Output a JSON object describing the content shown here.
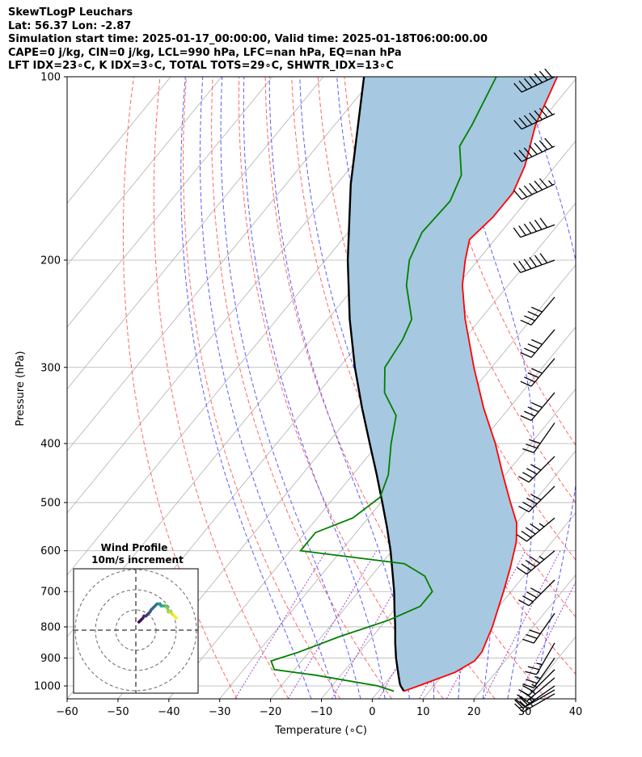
{
  "header": {
    "title": "SkewTLogP Leuchars",
    "location": "Lat: 56.37   Lon: -2.87",
    "times": "Simulation start time: 2025-01-17_00:00:00, Valid time: 2025-01-18T06:00:00.00",
    "params1": "CAPE=0 j/kg, CIN=0 j/kg, LCL=990 hPa, LFC=nan hPa, EQ=nan hPa",
    "params2": "LFT IDX=23∘C, K IDX=3∘C, TOTAL TOTS=29∘C, SHWTR_IDX=13∘C"
  },
  "chart_data": {
    "type": "line",
    "subtype": "skew-t log-p",
    "xlabel": "Temperature (∘C)",
    "ylabel": "Pressure (hPa)",
    "xlim": [
      -60,
      40
    ],
    "ylim_hpa": [
      1050,
      100
    ],
    "x_ticks": [
      -60,
      -50,
      -40,
      -30,
      -20,
      -10,
      0,
      10,
      20,
      30,
      40
    ],
    "y_ticks": [
      100,
      200,
      300,
      400,
      500,
      600,
      700,
      800,
      900,
      1000
    ],
    "y_scale": "log",
    "grid": true,
    "series": [
      {
        "role": "temperature",
        "color": "#ff0000",
        "points": [
          [
            1020,
            5.0
          ],
          [
            1000,
            7.0
          ],
          [
            950,
            12.0
          ],
          [
            910,
            14.0
          ],
          [
            880,
            14.0
          ],
          [
            800,
            12.0
          ],
          [
            700,
            8.5
          ],
          [
            640,
            6.0
          ],
          [
            580,
            3.0
          ],
          [
            540,
            0.0
          ],
          [
            500,
            -4.5
          ],
          [
            450,
            -10.5
          ],
          [
            400,
            -17.0
          ],
          [
            350,
            -25.0
          ],
          [
            300,
            -33.5
          ],
          [
            250,
            -43.0
          ],
          [
            220,
            -49.0
          ],
          [
            200,
            -52.5
          ],
          [
            185,
            -55.0
          ],
          [
            170,
            -54.0
          ],
          [
            155,
            -54.0
          ],
          [
            140,
            -56.0
          ],
          [
            120,
            -60.5
          ],
          [
            100,
            -64.0
          ]
        ]
      },
      {
        "role": "dewpoint",
        "color": "#008000",
        "points": [
          [
            1020,
            3.0
          ],
          [
            1000,
            -1.0
          ],
          [
            960,
            -15.0
          ],
          [
            940,
            -24.0
          ],
          [
            910,
            -26.0
          ],
          [
            880,
            -22.0
          ],
          [
            830,
            -16.5
          ],
          [
            780,
            -9.5
          ],
          [
            740,
            -5.5
          ],
          [
            700,
            -5.5
          ],
          [
            660,
            -9.5
          ],
          [
            630,
            -15.5
          ],
          [
            600,
            -38.0
          ],
          [
            560,
            -38.0
          ],
          [
            530,
            -33.0
          ],
          [
            490,
            -31.0
          ],
          [
            450,
            -33.0
          ],
          [
            400,
            -37.5
          ],
          [
            360,
            -41.0
          ],
          [
            330,
            -47.0
          ],
          [
            300,
            -51.0
          ],
          [
            270,
            -52.0
          ],
          [
            250,
            -53.5
          ],
          [
            220,
            -60.0
          ],
          [
            200,
            -63.5
          ],
          [
            180,
            -65.5
          ],
          [
            160,
            -65.0
          ],
          [
            145,
            -67.0
          ],
          [
            130,
            -72.0
          ],
          [
            120,
            -73.0
          ],
          [
            100,
            -76.0
          ]
        ]
      },
      {
        "role": "parcel",
        "color": "#000000",
        "points": [
          [
            1020,
            5.0
          ],
          [
            1000,
            3.5
          ],
          [
            990,
            2.9
          ],
          [
            950,
            0.8
          ],
          [
            900,
            -1.9
          ],
          [
            850,
            -4.5
          ],
          [
            800,
            -7.1
          ],
          [
            750,
            -10.0
          ],
          [
            700,
            -13.0
          ],
          [
            650,
            -16.5
          ],
          [
            600,
            -20.3
          ],
          [
            550,
            -24.7
          ],
          [
            500,
            -29.7
          ],
          [
            450,
            -35.3
          ],
          [
            400,
            -41.7
          ],
          [
            350,
            -48.9
          ],
          [
            300,
            -56.9
          ],
          [
            250,
            -65.7
          ],
          [
            200,
            -75.6
          ],
          [
            150,
            -87.3
          ],
          [
            100,
            -102.0
          ]
        ]
      }
    ],
    "dry_adiabats_theta_c": [
      -30,
      -20,
      -10,
      0,
      10,
      20,
      30,
      40,
      50,
      60,
      70,
      80
    ],
    "moist_adiabats_t1000_c": [
      -15,
      -10,
      -5,
      0,
      5,
      10,
      15,
      20,
      25,
      30
    ],
    "mixing_ratio_gkg": [
      0.4,
      1.0,
      2.0,
      4.0,
      7.0,
      10.0,
      16.0,
      24.0
    ],
    "wind_barbs": [
      {
        "p": 100,
        "dir": 245,
        "kt": 70
      },
      {
        "p": 115,
        "dir": 245,
        "kt": 70
      },
      {
        "p": 130,
        "dir": 245,
        "kt": 70
      },
      {
        "p": 150,
        "dir": 245,
        "kt": 65
      },
      {
        "p": 175,
        "dir": 250,
        "kt": 60
      },
      {
        "p": 200,
        "dir": 250,
        "kt": 60
      },
      {
        "p": 230,
        "dir": 220,
        "kt": 40
      },
      {
        "p": 260,
        "dir": 220,
        "kt": 40
      },
      {
        "p": 290,
        "dir": 220,
        "kt": 40
      },
      {
        "p": 330,
        "dir": 220,
        "kt": 40
      },
      {
        "p": 370,
        "dir": 215,
        "kt": 30
      },
      {
        "p": 420,
        "dir": 225,
        "kt": 40
      },
      {
        "p": 470,
        "dir": 225,
        "kt": 40
      },
      {
        "p": 530,
        "dir": 230,
        "kt": 45
      },
      {
        "p": 600,
        "dir": 230,
        "kt": 45
      },
      {
        "p": 670,
        "dir": 225,
        "kt": 40
      },
      {
        "p": 760,
        "dir": 215,
        "kt": 30
      },
      {
        "p": 850,
        "dir": 210,
        "kt": 25
      },
      {
        "p": 900,
        "dir": 215,
        "kt": 25
      },
      {
        "p": 940,
        "dir": 225,
        "kt": 25
      },
      {
        "p": 970,
        "dir": 230,
        "kt": 25
      },
      {
        "p": 1000,
        "dir": 235,
        "kt": 25
      },
      {
        "p": 1015,
        "dir": 240,
        "kt": 25
      },
      {
        "p": 1030,
        "dir": 240,
        "kt": 25
      }
    ],
    "hodograph": {
      "title": "Wind Profile",
      "subtitle": "10m/s increment",
      "rings_ms": [
        10,
        20,
        30
      ],
      "points": [
        [
          3,
          4
        ],
        [
          5,
          5
        ],
        [
          7,
          6
        ],
        [
          8,
          7
        ],
        [
          10,
          7
        ],
        [
          12,
          8
        ],
        [
          14,
          9
        ],
        [
          15,
          10
        ],
        [
          17,
          11
        ],
        [
          19,
          12
        ],
        [
          21,
          13
        ],
        [
          23,
          13
        ],
        [
          24,
          13
        ],
        [
          25,
          12
        ],
        [
          27,
          12
        ],
        [
          29,
          12
        ],
        [
          30,
          12
        ],
        [
          30,
          12
        ],
        [
          31,
          11
        ],
        [
          32,
          10
        ],
        [
          32,
          9
        ],
        [
          34,
          9
        ],
        [
          36,
          8
        ],
        [
          38,
          7
        ],
        [
          40,
          6
        ]
      ]
    }
  }
}
